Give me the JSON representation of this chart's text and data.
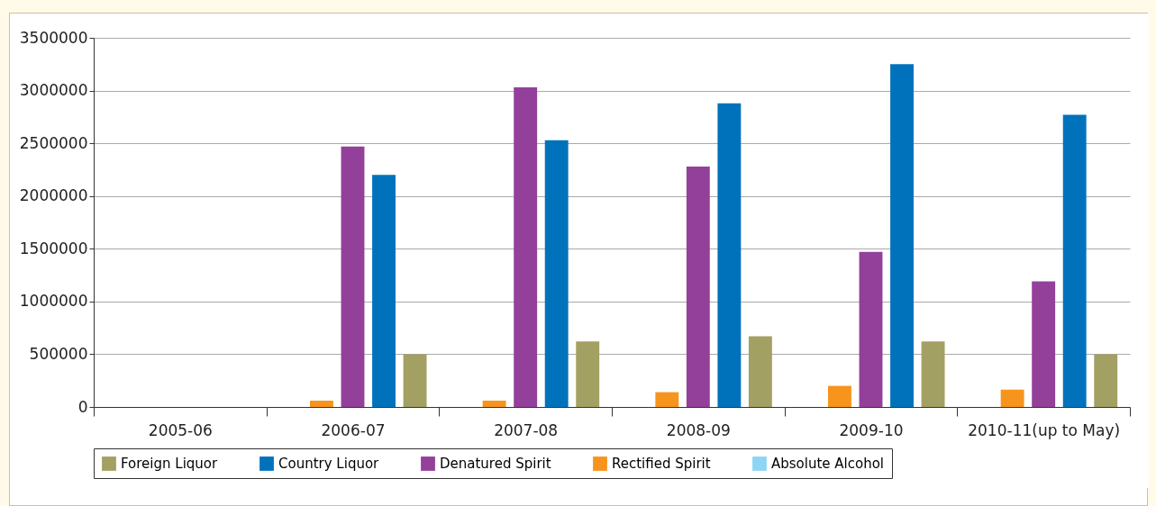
{
  "chart_data": {
    "type": "bar",
    "categories": [
      "2005-06",
      "2006-07",
      "2007-08",
      "2008-09",
      "2009-10",
      "2010-11(up to May)"
    ],
    "series": [
      {
        "name": "Foreign Liquor",
        "color": "#a3a063",
        "values": [
          null,
          500000,
          620000,
          670000,
          620000,
          500000
        ]
      },
      {
        "name": "Country Liquor",
        "color": "#0072bc",
        "values": [
          null,
          2200000,
          2530000,
          2880000,
          3250000,
          2770000
        ]
      },
      {
        "name": "Denatured Spirit",
        "color": "#93409a",
        "values": [
          null,
          2470000,
          3030000,
          2280000,
          1470000,
          1190000
        ]
      },
      {
        "name": "Rectified Spirit",
        "color": "#f7941d",
        "values": [
          null,
          60000,
          60000,
          140000,
          200000,
          165000
        ]
      },
      {
        "name": "Absolute Alcohol",
        "color": "#8dd5f5",
        "values": [
          null,
          0,
          0,
          0,
          0,
          0
        ]
      }
    ],
    "ylim": [
      0,
      3500000
    ],
    "yticks": [
      0,
      500000,
      1000000,
      1500000,
      2000000,
      2500000,
      3000000,
      3500000
    ],
    "grid": "y",
    "legend": "bottom"
  }
}
